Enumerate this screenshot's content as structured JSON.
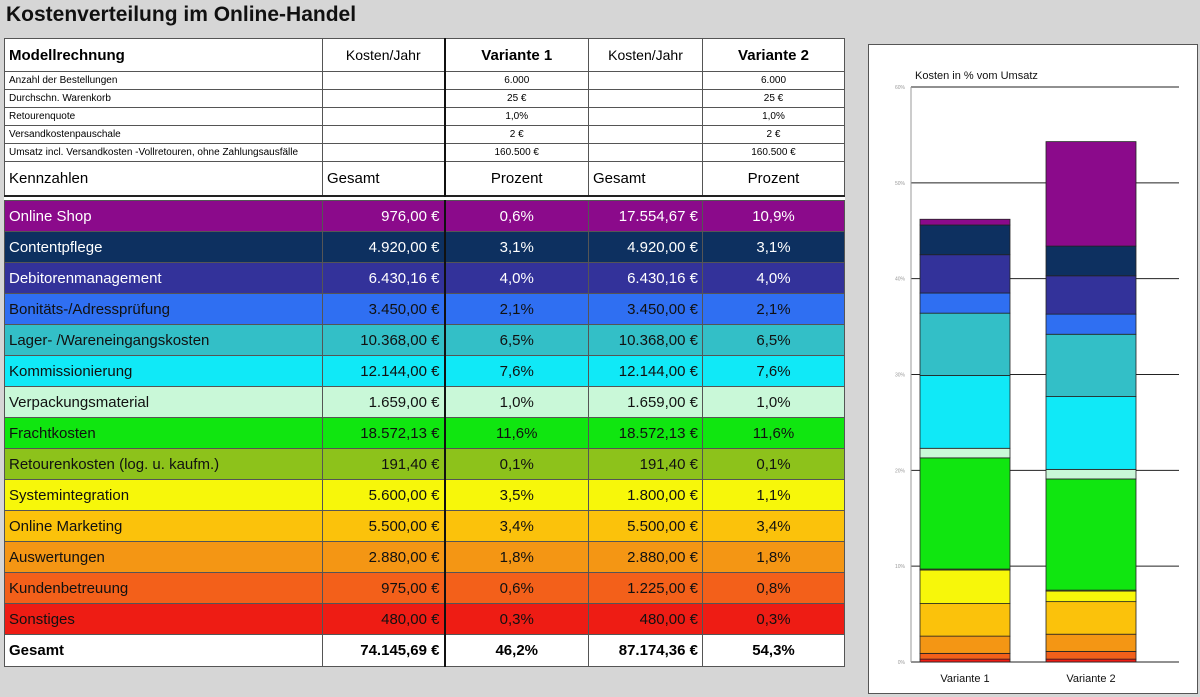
{
  "title": "Kostenverteilung im Online-Handel",
  "table": {
    "header": [
      "Modellrechnung",
      "Kosten/Jahr",
      "Variante 1",
      "Kosten/Jahr",
      "Variante 2"
    ],
    "params": [
      {
        "label": "Anzahl der Bestellungen",
        "v1": "6.000",
        "v2": "6.000"
      },
      {
        "label": "Durchschn. Warenkorb",
        "v1": "25 €",
        "v2": "25 €"
      },
      {
        "label": "Retourenquote",
        "v1": "1,0%",
        "v2": "1,0%"
      },
      {
        "label": "Versandkostenpauschale",
        "v1": "2 €",
        "v2": "2 €"
      },
      {
        "label": "Umsatz incl. Versandkosten -Vollretouren, ohne Zahlungsausfälle",
        "v1": "160.500 €",
        "v2": "160.500 €"
      }
    ],
    "kz_header": [
      "Kennzahlen",
      "Gesamt",
      "Prozent",
      "Gesamt",
      "Prozent"
    ],
    "categories": [
      {
        "name": "Online Shop",
        "cost1": "976,00 €",
        "pct1": "0,6%",
        "cost2": "17.554,67 €",
        "pct2": "10,9%",
        "color": "#8b0a8b",
        "text": "#ffffff"
      },
      {
        "name": "Contentpflege",
        "cost1": "4.920,00 €",
        "pct1": "3,1%",
        "cost2": "4.920,00 €",
        "pct2": "3,1%",
        "color": "#0d3060",
        "text": "#ffffff"
      },
      {
        "name": "Debitorenmanagement",
        "cost1": "6.430,16 €",
        "pct1": "4,0%",
        "cost2": "6.430,16 €",
        "pct2": "4,0%",
        "color": "#33329a",
        "text": "#ffffff"
      },
      {
        "name": "Bonitäts-/Adressprüfung",
        "cost1": "3.450,00 €",
        "pct1": "2,1%",
        "cost2": "3.450,00 €",
        "pct2": "2,1%",
        "color": "#2f6ff2",
        "text": "#111111"
      },
      {
        "name": "Lager- /Wareneingangskosten",
        "cost1": "10.368,00 €",
        "pct1": "6,5%",
        "cost2": "10.368,00 €",
        "pct2": "6,5%",
        "color": "#33bfc7",
        "text": "#111111"
      },
      {
        "name": "Kommissionierung",
        "cost1": "12.144,00 €",
        "pct1": "7,6%",
        "cost2": "12.144,00 €",
        "pct2": "7,6%",
        "color": "#10e9f7",
        "text": "#111111"
      },
      {
        "name": "Verpackungsmaterial",
        "cost1": "1.659,00 €",
        "pct1": "1,0%",
        "cost2": "1.659,00 €",
        "pct2": "1,0%",
        "color": "#c9f8d8",
        "text": "#111111"
      },
      {
        "name": "Frachtkosten",
        "cost1": "18.572,13 €",
        "pct1": "11,6%",
        "cost2": "18.572,13 €",
        "pct2": "11,6%",
        "color": "#10e610",
        "text": "#111111"
      },
      {
        "name": "Retourenkosten (log. u. kaufm.)",
        "cost1": "191,40 €",
        "pct1": "0,1%",
        "cost2": "191,40 €",
        "pct2": "0,1%",
        "color": "#8dc21b",
        "text": "#111111"
      },
      {
        "name": "Systemintegration",
        "cost1": "5.600,00 €",
        "pct1": "3,5%",
        "cost2": "1.800,00 €",
        "pct2": "1,1%",
        "color": "#f7f70a",
        "text": "#111111"
      },
      {
        "name": "Online Marketing",
        "cost1": "5.500,00 €",
        "pct1": "3,4%",
        "cost2": "5.500,00 €",
        "pct2": "3,4%",
        "color": "#fbc20b",
        "text": "#111111"
      },
      {
        "name": "Auswertungen",
        "cost1": "2.880,00 €",
        "pct1": "1,8%",
        "cost2": "2.880,00 €",
        "pct2": "1,8%",
        "color": "#f49614",
        "text": "#111111"
      },
      {
        "name": "Kundenbetreuung",
        "cost1": "975,00 €",
        "pct1": "0,6%",
        "cost2": "1.225,00 €",
        "pct2": "0,8%",
        "color": "#f3601a",
        "text": "#111111"
      },
      {
        "name": "Sonstiges",
        "cost1": "480,00 €",
        "pct1": "0,3%",
        "cost2": "480,00 €",
        "pct2": "0,3%",
        "color": "#ee1c14",
        "text": "#111111"
      }
    ],
    "total": {
      "label": "Gesamt",
      "cost1": "74.145,69 €",
      "pct1": "46,2%",
      "cost2": "87.174,36 €",
      "pct2": "54,3%"
    }
  },
  "chart_data": {
    "type": "bar",
    "stacked": true,
    "title": "Kosten in % vom Umsatz",
    "categories": [
      "Variante 1",
      "Variante 2"
    ],
    "ylim": [
      0,
      60
    ],
    "yticks": [
      "0%",
      "10%",
      "20%",
      "30%",
      "40%",
      "50%",
      "60%"
    ],
    "grid": true,
    "series": [
      {
        "name": "Sonstiges",
        "values": [
          0.3,
          0.3
        ]
      },
      {
        "name": "Kundenbetreuung",
        "values": [
          0.6,
          0.8
        ]
      },
      {
        "name": "Auswertungen",
        "values": [
          1.8,
          1.8
        ]
      },
      {
        "name": "Online Marketing",
        "values": [
          3.4,
          3.4
        ]
      },
      {
        "name": "Systemintegration",
        "values": [
          3.5,
          1.1
        ]
      },
      {
        "name": "Retourenkosten (log. u. kaufm.)",
        "values": [
          0.1,
          0.1
        ]
      },
      {
        "name": "Frachtkosten",
        "values": [
          11.6,
          11.6
        ]
      },
      {
        "name": "Verpackungsmaterial",
        "values": [
          1.0,
          1.0
        ]
      },
      {
        "name": "Kommissionierung",
        "values": [
          7.6,
          7.6
        ]
      },
      {
        "name": "Lager- /Wareneingangskosten",
        "values": [
          6.5,
          6.5
        ]
      },
      {
        "name": "Bonitäts-/Adressprüfung",
        "values": [
          2.1,
          2.1
        ]
      },
      {
        "name": "Debitorenmanagement",
        "values": [
          4.0,
          4.0
        ]
      },
      {
        "name": "Contentpflege",
        "values": [
          3.1,
          3.1
        ]
      },
      {
        "name": "Online Shop",
        "values": [
          0.6,
          10.9
        ]
      }
    ],
    "colors": [
      "#ee1c14",
      "#f3601a",
      "#f49614",
      "#fbc20b",
      "#f7f70a",
      "#8dc21b",
      "#10e610",
      "#c9f8d8",
      "#10e9f7",
      "#33bfc7",
      "#2f6ff2",
      "#33329a",
      "#0d3060",
      "#8b0a8b"
    ]
  }
}
